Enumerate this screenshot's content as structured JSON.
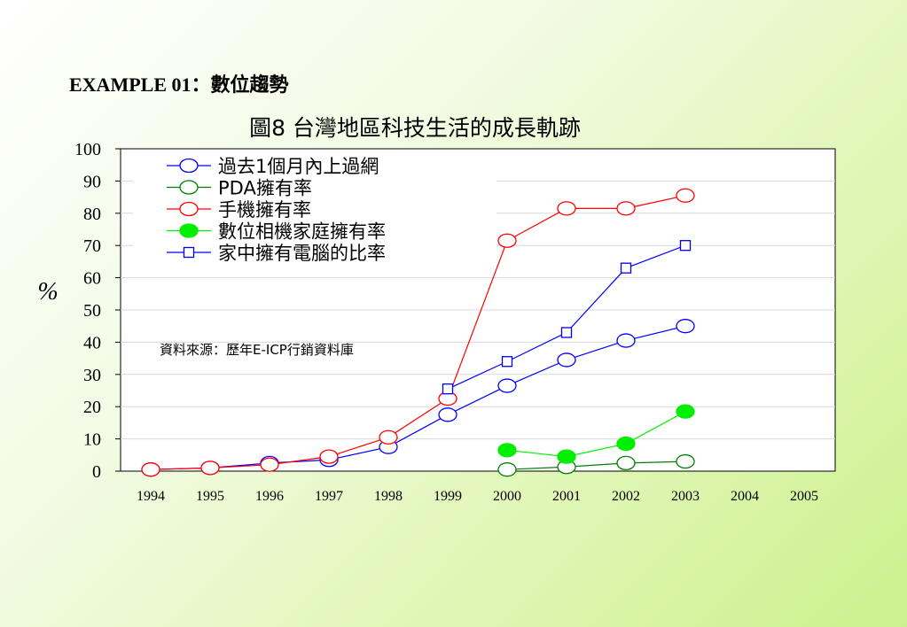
{
  "heading": "EXAMPLE 01：數位趨勢",
  "chart_data": {
    "type": "line",
    "title": "圖8  台灣地區科技生活的成長軌跡",
    "ylabel": "%",
    "xlabel": "",
    "categories": [
      "1994",
      "1995",
      "1996",
      "1997",
      "1998",
      "1999",
      "2000",
      "2001",
      "2002",
      "2003",
      "2004",
      "2005"
    ],
    "y_ticks": [
      "0",
      "10",
      "20",
      "30",
      "40",
      "50",
      "60",
      "70",
      "80",
      "90",
      "100"
    ],
    "ylim": [
      0,
      100
    ],
    "grid": true,
    "legend_position": "top-left",
    "annotation": "資料來源：歷年E-ICP行銷資料庫",
    "series": [
      {
        "name": "過去1個月內上過網",
        "color": "#0000ff",
        "marker": "circle-open",
        "values": [
          0.5,
          1,
          2.5,
          3.5,
          7.5,
          17.5,
          26.5,
          34.5,
          40.5,
          45,
          null,
          null
        ]
      },
      {
        "name": "PDA擁有率",
        "color": "#008000",
        "marker": "circle-open",
        "values": [
          null,
          null,
          null,
          null,
          null,
          null,
          0.5,
          1.3,
          2.5,
          3,
          null,
          null
        ]
      },
      {
        "name": "手機擁有率",
        "color": "#ff0000",
        "marker": "circle-open",
        "values": [
          0.5,
          1,
          2,
          4.5,
          10.5,
          22.5,
          71.5,
          81.5,
          81.5,
          85.5,
          null,
          null
        ]
      },
      {
        "name": "數位相機家庭擁有率",
        "color": "#00ee00",
        "marker": "circle-filled",
        "values": [
          null,
          null,
          null,
          null,
          null,
          null,
          6.5,
          4.5,
          8.5,
          18.5,
          null,
          null
        ]
      },
      {
        "name": "家中擁有電腦的比率",
        "color": "#0000ff",
        "marker": "square-open",
        "values": [
          null,
          null,
          null,
          null,
          null,
          25.5,
          34,
          43,
          63,
          70,
          null,
          null
        ]
      }
    ]
  }
}
